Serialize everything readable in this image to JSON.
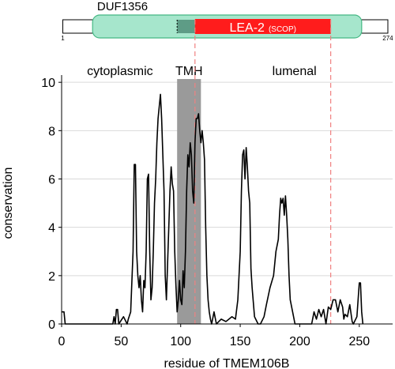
{
  "chart_data": {
    "type": "line",
    "xlabel": "residue of TMEM106B",
    "ylabel": "conservation",
    "xlim": [
      0,
      278
    ],
    "ylim": [
      0,
      10.3
    ],
    "xticks": [
      0,
      50,
      100,
      150,
      200,
      250
    ],
    "yticks": [
      0,
      2,
      4,
      6,
      8,
      10
    ],
    "grid": true,
    "x": [
      0,
      2,
      3,
      43,
      44,
      45,
      46,
      47,
      48,
      52,
      55,
      56,
      58,
      60,
      61,
      62,
      63,
      64,
      65,
      66,
      67,
      68,
      69,
      70,
      71,
      72,
      73,
      74,
      75,
      76,
      77,
      78,
      79,
      80,
      81,
      82,
      83,
      84,
      85,
      86,
      87,
      88,
      89,
      90,
      91,
      92,
      93,
      94,
      95,
      96,
      97,
      98,
      99,
      100,
      101,
      102,
      103,
      104,
      105,
      106,
      107,
      108,
      109,
      110,
      111,
      112,
      113,
      114,
      115,
      116,
      117,
      118,
      119,
      120,
      121,
      122,
      123,
      124,
      125,
      126,
      128,
      130,
      134,
      138,
      143,
      146,
      148,
      150,
      151,
      152,
      153,
      154,
      155,
      156,
      157,
      158,
      159,
      160,
      162,
      163,
      165,
      167,
      170,
      172,
      175,
      178,
      180,
      182,
      183,
      184,
      185,
      186,
      187,
      188,
      189,
      190,
      191,
      192,
      194,
      196,
      210,
      212,
      214,
      216,
      218,
      220,
      222,
      224,
      226,
      227,
      228,
      230,
      232,
      234,
      236,
      237,
      238,
      240,
      242,
      244,
      245,
      248,
      250,
      251,
      252,
      253
    ],
    "series": [
      {
        "color": "#000000",
        "values": [
          0.5,
          0.5,
          0,
          0,
          0.3,
          0,
          0.6,
          0.6,
          0,
          0.3,
          0,
          0.2,
          0.5,
          3,
          6.6,
          6.6,
          3,
          2,
          1.5,
          2,
          1,
          0.5,
          1.8,
          1.5,
          3,
          6,
          6.2,
          3,
          1,
          1.5,
          3,
          5,
          6,
          7.5,
          8.5,
          9,
          9.5,
          8.5,
          7,
          5.5,
          2,
          1,
          2.5,
          4,
          5.5,
          6.5,
          5.8,
          5.5,
          3,
          1.6,
          0.5,
          1,
          1.8,
          1,
          0.8,
          2.2,
          1.5,
          3,
          5.5,
          7,
          6.5,
          7.5,
          7,
          5.5,
          5,
          7.5,
          8.5,
          8.5,
          8.7,
          8,
          7.5,
          8,
          7.5,
          6.8,
          4,
          2,
          1,
          0.5,
          0.2,
          0,
          0.5,
          0,
          0.2,
          0.1,
          0.3,
          0.2,
          1,
          3,
          5.5,
          7,
          7.2,
          6,
          7.3,
          6.5,
          5.5,
          5,
          2.3,
          1.5,
          0.3,
          0.2,
          0,
          0,
          0.3,
          0.8,
          1.5,
          2,
          3,
          3.5,
          4.5,
          5.2,
          5,
          5.2,
          4.5,
          5.3,
          4.5,
          3.5,
          2,
          1,
          0.5,
          0,
          0,
          0.5,
          0.2,
          0.6,
          0.3,
          0.6,
          0,
          0.7,
          0.6,
          0.8,
          1,
          1,
          0.5,
          1,
          0.7,
          0.2,
          0.4,
          0.3,
          0.8,
          0.1,
          0,
          0.3,
          1.7,
          1.7,
          0.5,
          0
        ]
      }
    ],
    "regions": [
      {
        "label": "cytoplasmic",
        "start": 1,
        "end": 97
      },
      {
        "label": "TMH",
        "start": 97,
        "end": 117,
        "color": "#9a9a9a"
      },
      {
        "label": "lumenal",
        "start": 117,
        "end": 274
      }
    ],
    "sequence_range": [
      1,
      274
    ],
    "domains": [
      {
        "name": "DUF1356",
        "start": 26,
        "end": 252,
        "color": "#a6e6cc",
        "edge_color": "#45b884"
      },
      {
        "name": "LEA-2",
        "source": "(SCOP)",
        "start": 112,
        "end": 226,
        "color": "#ff1c1c"
      }
    ],
    "marker_color": "#f08080"
  }
}
